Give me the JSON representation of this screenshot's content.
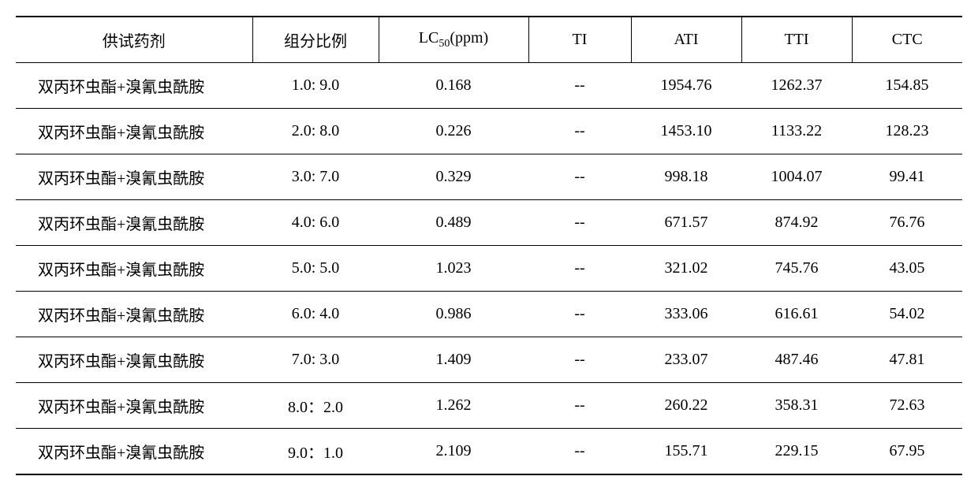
{
  "table": {
    "columns": [
      {
        "key": "agent",
        "label": "供试药剂",
        "class": "col-agent"
      },
      {
        "key": "ratio",
        "label": "组分比例",
        "class": "col-ratio"
      },
      {
        "key": "lc50",
        "label_html": "LC<span class=\"sub\">50</span>(ppm)",
        "class": "col-lc50"
      },
      {
        "key": "ti",
        "label": "TI",
        "class": "col-ti"
      },
      {
        "key": "ati",
        "label": "ATI",
        "class": "col-ati"
      },
      {
        "key": "tti",
        "label": "TTI",
        "class": "col-tti"
      },
      {
        "key": "ctc",
        "label": "CTC",
        "class": "col-ctc"
      }
    ],
    "rows": [
      {
        "agent": "双丙环虫酯+溴氰虫酰胺",
        "ratio": "1.0: 9.0",
        "lc50": "0.168",
        "ti": "--",
        "ati": "1954.76",
        "tti": "1262.37",
        "ctc": "154.85"
      },
      {
        "agent": "双丙环虫酯+溴氰虫酰胺",
        "ratio": "2.0: 8.0",
        "lc50": "0.226",
        "ti": "--",
        "ati": "1453.10",
        "tti": "1133.22",
        "ctc": "128.23"
      },
      {
        "agent": "双丙环虫酯+溴氰虫酰胺",
        "ratio": "3.0: 7.0",
        "lc50": "0.329",
        "ti": "--",
        "ati": "998.18",
        "tti": "1004.07",
        "ctc": "99.41"
      },
      {
        "agent": "双丙环虫酯+溴氰虫酰胺",
        "ratio": "4.0: 6.0",
        "lc50": "0.489",
        "ti": "--",
        "ati": "671.57",
        "tti": "874.92",
        "ctc": "76.76"
      },
      {
        "agent": "双丙环虫酯+溴氰虫酰胺",
        "ratio": "5.0: 5.0",
        "lc50": "1.023",
        "ti": "--",
        "ati": "321.02",
        "tti": "745.76",
        "ctc": "43.05"
      },
      {
        "agent": "双丙环虫酯+溴氰虫酰胺",
        "ratio": "6.0: 4.0",
        "lc50": "0.986",
        "ti": "--",
        "ati": "333.06",
        "tti": "616.61",
        "ctc": "54.02"
      },
      {
        "agent": "双丙环虫酯+溴氰虫酰胺",
        "ratio": "7.0: 3.0",
        "lc50": "1.409",
        "ti": "--",
        "ati": "233.07",
        "tti": "487.46",
        "ctc": "47.81"
      },
      {
        "agent": "双丙环虫酯+溴氰虫酰胺",
        "ratio": "8.0：2.0",
        "lc50": "1.262",
        "ti": "--",
        "ati": "260.22",
        "tti": "358.31",
        "ctc": "72.63"
      },
      {
        "agent": "双丙环虫酯+溴氰虫酰胺",
        "ratio": "9.0：1.0",
        "lc50": "2.109",
        "ti": "--",
        "ati": "155.71",
        "tti": "229.15",
        "ctc": "67.95"
      }
    ]
  }
}
